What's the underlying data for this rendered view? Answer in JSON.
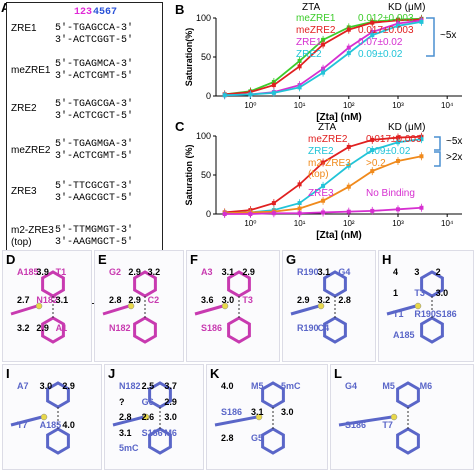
{
  "panelA": {
    "label": "A",
    "header": {
      "p1": "123",
      "p2": "4567"
    },
    "rows": [
      {
        "name": "ZRE1",
        "top": "5′-TGAGCCA-3′",
        "bottom": "3′-ACTCGGT-5′"
      },
      {
        "name": "meZRE1",
        "top": "5′-TGAGMCA-3′",
        "bottom": "3′-ACTCGMT-5′"
      },
      {
        "name": "ZRE2",
        "top": "5′-TGAGCGA-3′",
        "bottom": "3′-ACTCGCT-5′"
      },
      {
        "name": "meZRE2",
        "top": "5′-TGAGMGA-3′",
        "bottom": "3′-ACTCGMT-5′"
      },
      {
        "name": "ZRE3",
        "top": "5′-TTCGCGT-3′",
        "bottom": "3′-AAGCGCT-5′"
      },
      {
        "name": "m2-ZRE3",
        "name2": "(top)",
        "top": "5′-TTMGMGT-3′",
        "bottom": "3′-AAGMGCT-5′"
      }
    ]
  },
  "panelB": {
    "label": "B",
    "ylabel": "Saturation(%)",
    "xlabel": "[Zta] (nM)",
    "legend_head": "ZTA",
    "kd_head": "KD (μM)",
    "items": [
      {
        "name": "meZRE1",
        "kd": "0.012±0.003",
        "color": "#3ccc2a"
      },
      {
        "name": "meZRE2",
        "kd": "0.017±0.003",
        "color": "#e02020"
      },
      {
        "name": "ZRE1",
        "kd": "0.07±0.02",
        "color": "#d62fd0"
      },
      {
        "name": "ZRE2",
        "kd": "0.09±0.02",
        "color": "#22c4d8"
      }
    ],
    "fold": "~5x"
  },
  "panelC": {
    "label": "C",
    "ylabel": "Saturation (%)",
    "xlabel": "[Zta] (nM)",
    "legend_head": "ZTA",
    "kd_head": "KD (μM)",
    "items": [
      {
        "name": "meZRE2",
        "kd": "0.017±0.003",
        "color": "#e02020"
      },
      {
        "name": "ZRE2",
        "kd": "0.09±0.02",
        "color": "#22c4d8"
      },
      {
        "name": "m2-ZRE3",
        "kd": ">0.2",
        "color": "#f08a1c"
      },
      {
        "name": "(top)",
        "kd": "",
        "color": "#f08a1c"
      },
      {
        "name": "ZRE3",
        "kd": "No Binding",
        "color": "#d62fd0"
      }
    ],
    "fold1": "~5x",
    "fold2": ">2x"
  },
  "chart_data": [
    {
      "type": "line",
      "xlabel": "[Zta] (nM)",
      "ylabel": "Saturation(%)",
      "xscale": "log",
      "xticks": [
        "10⁰",
        "10¹",
        "10²",
        "10³",
        "10⁴"
      ],
      "yticks": [
        0,
        50,
        100
      ],
      "ylim": [
        0,
        100
      ],
      "series": [
        {
          "name": "meZRE1",
          "x": [
            0.3,
            1,
            3,
            10,
            30,
            100,
            300,
            1000,
            3000
          ],
          "y": [
            2,
            6,
            18,
            45,
            72,
            88,
            95,
            98,
            99
          ]
        },
        {
          "name": "meZRE2",
          "x": [
            0.3,
            1,
            3,
            10,
            30,
            100,
            300,
            1000,
            3000
          ],
          "y": [
            2,
            5,
            14,
            38,
            66,
            85,
            94,
            97,
            98
          ]
        },
        {
          "name": "ZRE1",
          "x": [
            0.3,
            1,
            3,
            10,
            30,
            100,
            300,
            1000,
            3000
          ],
          "y": [
            1,
            2,
            5,
            14,
            35,
            62,
            82,
            93,
            97
          ]
        },
        {
          "name": "ZRE2",
          "x": [
            0.3,
            1,
            3,
            10,
            30,
            100,
            300,
            1000,
            3000
          ],
          "y": [
            1,
            2,
            4,
            11,
            30,
            55,
            78,
            90,
            95
          ]
        }
      ]
    },
    {
      "type": "line",
      "xlabel": "[Zta] (nM)",
      "ylabel": "Saturation (%)",
      "xscale": "log",
      "xticks": [
        "10⁰",
        "10¹",
        "10²",
        "10³",
        "10⁴"
      ],
      "yticks": [
        0,
        50,
        100
      ],
      "ylim": [
        0,
        100
      ],
      "series": [
        {
          "name": "meZRE2",
          "x": [
            0.3,
            1,
            3,
            10,
            30,
            100,
            300,
            1000,
            3000
          ],
          "y": [
            2,
            5,
            14,
            38,
            66,
            86,
            95,
            98,
            99
          ]
        },
        {
          "name": "ZRE2",
          "x": [
            0.3,
            1,
            3,
            10,
            30,
            100,
            300,
            1000,
            3000
          ],
          "y": [
            1,
            2,
            5,
            14,
            36,
            62,
            82,
            92,
            96
          ]
        },
        {
          "name": "m2-ZRE3",
          "x": [
            0.3,
            1,
            3,
            10,
            30,
            100,
            300,
            1000,
            3000
          ],
          "y": [
            1,
            2,
            3,
            7,
            17,
            35,
            55,
            68,
            74
          ]
        },
        {
          "name": "ZRE3",
          "x": [
            0.3,
            1,
            3,
            10,
            30,
            100,
            300,
            1000,
            3000
          ],
          "y": [
            0,
            0,
            1,
            1,
            2,
            3,
            4,
            6,
            8
          ]
        }
      ]
    }
  ],
  "structures": [
    {
      "label": "D",
      "texts": [
        "A185",
        "3.9",
        "T1",
        "2.7",
        "N182",
        "3.1",
        "3.2",
        "2.9",
        "A1"
      ]
    },
    {
      "label": "E",
      "texts": [
        "G2",
        "2.9",
        "3.2",
        "2.8",
        "2.9",
        "C2",
        "N182"
      ]
    },
    {
      "label": "F",
      "texts": [
        "A3",
        "3.1",
        "2.9",
        "3.6",
        "3.0",
        "T3",
        "S186"
      ]
    },
    {
      "label": "G",
      "texts": [
        "R190",
        "3.1",
        "G4",
        "2.9",
        "3.2",
        "2.8",
        "R190",
        "C4"
      ]
    },
    {
      "label": "H",
      "texts": [
        "4",
        "3",
        "2",
        "1",
        "T3",
        "3.0",
        "T1",
        "R190",
        "S186",
        "A185"
      ]
    },
    {
      "label": "I",
      "texts": [
        "A7",
        "3.0",
        "2.9",
        "T7",
        "A185",
        "4.0"
      ]
    },
    {
      "label": "J",
      "texts": [
        "N182",
        "2.5",
        "3.7",
        "?",
        "G6",
        "2.9",
        "2.8",
        "2.6",
        "3.0",
        "3.1",
        "S186",
        "M6",
        "5mC"
      ]
    },
    {
      "label": "K",
      "texts": [
        "4.0",
        "M5",
        "5mC",
        "S186",
        "3.1",
        "3.0",
        "2.8",
        "G5"
      ]
    },
    {
      "label": "L",
      "texts": [
        "G4",
        "M5",
        "M6",
        "S186",
        "T7"
      ]
    }
  ]
}
